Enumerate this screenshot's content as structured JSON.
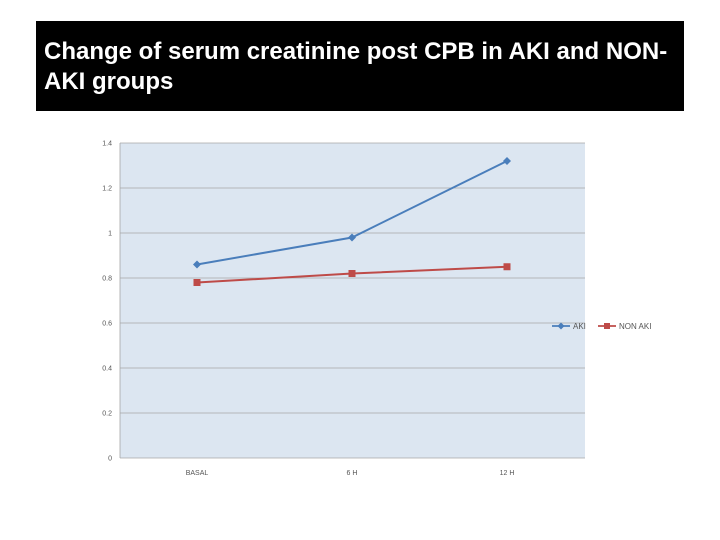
{
  "title": "Change of serum creatinine post CPB in AKI and NON- AKI groups",
  "chart_data": {
    "type": "line",
    "title": "Change of serum creatinine post CPB in AKI and NON- AKI groups",
    "categories": [
      "BASAL",
      "6 H",
      "12 H"
    ],
    "series": [
      {
        "name": "AKI",
        "values": [
          0.86,
          0.98,
          1.32
        ],
        "color": "#4a7ebb",
        "marker": "diamond"
      },
      {
        "name": "NON AKI",
        "values": [
          0.78,
          0.82,
          0.85
        ],
        "color": "#be4b48",
        "marker": "square"
      }
    ],
    "ylim": [
      0,
      1.4
    ],
    "yticks": [
      0,
      0.2,
      0.4,
      0.6,
      0.8,
      1,
      1.2,
      1.4
    ],
    "ytick_labels": [
      "0",
      "0.2",
      "0.4",
      "0.6",
      "0.8",
      "1",
      "1.2",
      "1.4"
    ],
    "xlabel": "",
    "ylabel": "",
    "grid": true,
    "legend_position": "right",
    "plot_background": "#dce6f1",
    "grid_color": "#a6a6a6"
  }
}
